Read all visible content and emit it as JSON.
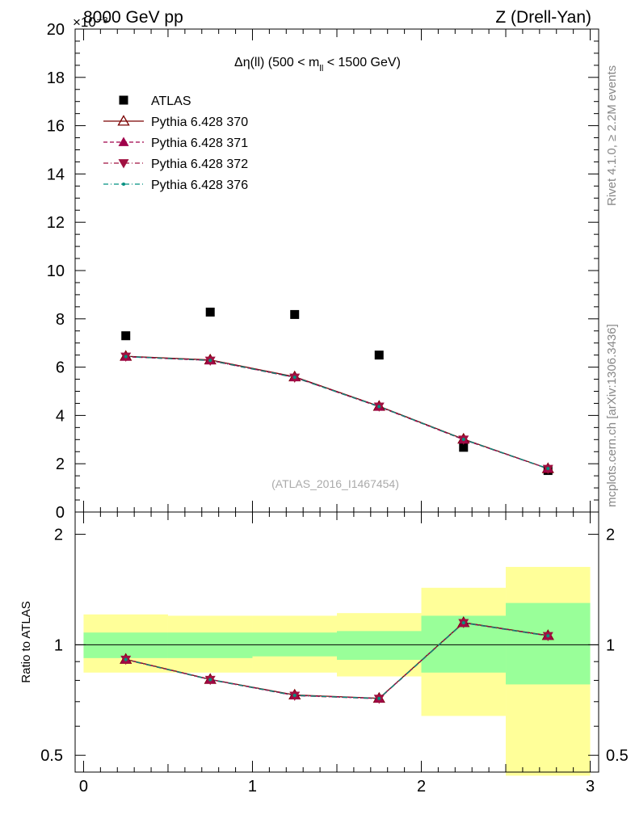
{
  "header": {
    "left": "8000 GeV pp",
    "right": "Z (Drell-Yan)",
    "exponent": "×10⁻³"
  },
  "side_labels": {
    "rivet": "Rivet 4.1.0, ≥ 2.2M events",
    "mcplots": "mcplots.cern.ch [arXiv:1306.3436]"
  },
  "chart_data": {
    "type": "scatter",
    "title": "Δη(ll) (500 < m_ll < 1500 GeV)",
    "title_parts": {
      "main": "Δη(ll) (500 < m",
      "sub": "ll",
      "tail": " < 1500 GeV)"
    },
    "analysis_id": "(ATLAS_2016_I1467454)",
    "x_bins": [
      [
        0,
        0.5
      ],
      [
        0.5,
        1
      ],
      [
        1,
        1.5
      ],
      [
        1.5,
        2
      ],
      [
        2,
        2.5
      ],
      [
        2.5,
        3
      ]
    ],
    "x": [
      0.25,
      0.75,
      1.25,
      1.75,
      2.25,
      2.75
    ],
    "xlim": [
      -0.05,
      3.05
    ],
    "xticks": [
      "0",
      "1",
      "2",
      "3"
    ],
    "main": {
      "ylim": [
        0,
        20
      ],
      "yticks": [
        "0",
        "2",
        "4",
        "6",
        "8",
        "10",
        "12",
        "14",
        "16",
        "18",
        "20"
      ],
      "y_scale_note": "×10⁻³"
    },
    "ratio": {
      "ylabel": "Ratio to ATLAS",
      "ylim": [
        0.45,
        2.3
      ],
      "yticks": [
        "0.5",
        "1",
        "2"
      ],
      "yticks_right": [
        "0.5",
        "1",
        "2"
      ],
      "green_band": [
        [
          0.92,
          1.08
        ],
        [
          0.92,
          1.08
        ],
        [
          0.93,
          1.08
        ],
        [
          0.91,
          1.09
        ],
        [
          0.84,
          1.2
        ],
        [
          0.78,
          1.3
        ]
      ],
      "yellow_band": [
        [
          0.84,
          1.21
        ],
        [
          0.84,
          1.2
        ],
        [
          0.84,
          1.2
        ],
        [
          0.82,
          1.22
        ],
        [
          0.64,
          1.43
        ],
        [
          0.44,
          1.63
        ]
      ]
    },
    "series": [
      {
        "name": "ATLAS",
        "values": [
          7.3,
          8.28,
          8.18,
          6.5,
          2.68,
          1.72
        ],
        "ratio": [
          1,
          1,
          1,
          1,
          1,
          1
        ],
        "color": "#000000",
        "marker": "square"
      },
      {
        "name": "Pythia 6.428 370",
        "values": [
          6.45,
          6.3,
          5.6,
          4.38,
          3.02,
          1.8
        ],
        "ratio": [
          0.913,
          0.805,
          0.73,
          0.715,
          1.15,
          1.06
        ],
        "color": "#7a0000",
        "marker": "triangle-open",
        "line": "solid"
      },
      {
        "name": "Pythia 6.428 371",
        "values": [
          6.43,
          6.28,
          5.58,
          4.36,
          3.0,
          1.8
        ],
        "ratio": [
          0.912,
          0.804,
          0.728,
          0.714,
          1.148,
          1.058
        ],
        "color": "#a0004a",
        "marker": "triangle-up",
        "line": "dashed"
      },
      {
        "name": "Pythia 6.428 372",
        "values": [
          6.44,
          6.27,
          5.57,
          4.37,
          3.0,
          1.79
        ],
        "ratio": [
          0.911,
          0.803,
          0.727,
          0.713,
          1.147,
          1.057
        ],
        "color": "#a01040",
        "marker": "triangle-down",
        "line": "dashdot"
      },
      {
        "name": "Pythia 6.428 376",
        "values": [
          6.44,
          6.28,
          5.58,
          4.37,
          3.01,
          1.8
        ],
        "ratio": [
          0.912,
          0.804,
          0.728,
          0.714,
          1.148,
          1.058
        ],
        "color": "#009080",
        "marker": "dot",
        "line": "dashdot"
      }
    ]
  }
}
